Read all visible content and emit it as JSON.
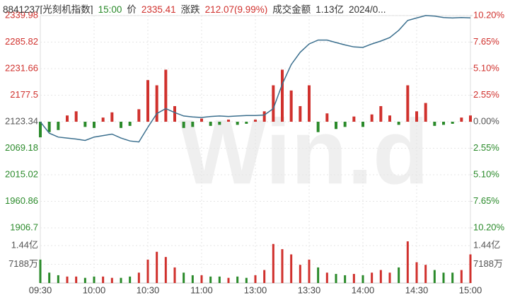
{
  "chart_data": {
    "type": "intraday",
    "header": {
      "items": [
        "8841237[光刻机指数]",
        "15:00",
        "价",
        "2335.41",
        "涨跌",
        "212.07(9.99%)",
        "成交金额",
        "1.13亿",
        "2024/0..."
      ],
      "colors": [
        "#333333",
        "#2a8a2a",
        "#333333",
        "#d0312d",
        "#333333",
        "#d0312d",
        "#333333",
        "#333333",
        "#333333"
      ]
    },
    "watermark": "Win.d",
    "categories": [
      "09:30",
      null,
      null,
      null,
      null,
      null,
      "10:00",
      null,
      null,
      null,
      null,
      null,
      "10:30",
      null,
      null,
      null,
      null,
      null,
      "11:00",
      null,
      null,
      null,
      null,
      null,
      "13:00",
      null,
      null,
      null,
      null,
      null,
      "13:30",
      null,
      null,
      null,
      null,
      null,
      "14:00",
      null,
      null,
      null,
      null,
      null,
      "14:30",
      null,
      null,
      null,
      null,
      null,
      "15:00"
    ],
    "ylim": [
      1906.7,
      2339.98
    ],
    "yticks": [
      2339.98,
      2285.82,
      2231.66,
      2177.5,
      2123.34,
      2069.18,
      2015.02,
      1960.86,
      1906.7
    ],
    "y2lim": [
      -10.2,
      10.2
    ],
    "y2ticks": [
      {
        "value": 10.2,
        "label": "10.20%"
      },
      {
        "value": 7.65,
        "label": "7.65%"
      },
      {
        "value": 5.1,
        "label": "5.10%"
      },
      {
        "value": 2.55,
        "label": "2.55%"
      },
      {
        "value": 0,
        "label": "0.00%"
      },
      {
        "value": -2.55,
        "label": "2.55%"
      },
      {
        "value": -5.1,
        "label": "5.10%"
      },
      {
        "value": -7.65,
        "label": "7.65%"
      },
      {
        "value": -10.2,
        "label": "10.20%"
      }
    ],
    "volume_ylim": [
      0,
      19000
    ],
    "volume_ticks": [
      {
        "value": 14400,
        "label": "1.44亿"
      },
      {
        "value": 7188,
        "label": "7188万"
      }
    ],
    "up_color": "#d0312d",
    "down_color": "#2a8a2a",
    "flat_color": "#555555",
    "series": [
      {
        "name": "价",
        "color": "#3b6f8e",
        "values": [
          2123,
          2100,
          2092,
          2090,
          2088,
          2085,
          2092,
          2095,
          2098,
          2090,
          2084,
          2082,
          2112,
          2140,
          2150,
          2142,
          2135,
          2133,
          2132,
          2134,
          2135,
          2134,
          2135,
          2136,
          2136,
          2137,
          2150,
          2200,
          2240,
          2265,
          2282,
          2290,
          2290,
          2285,
          2280,
          2276,
          2275,
          2282,
          2288,
          2295,
          2310,
          2330,
          2335,
          2340,
          2339,
          2336,
          2335,
          2336,
          2335.41
        ]
      },
      {
        "axis": "y2",
        "values": [
          -1.5,
          -1,
          -0.8,
          0.6,
          1.0,
          -0.5,
          -0.6,
          0.4,
          0.9,
          -0.6,
          -0.4,
          1.2,
          4.0,
          3.5,
          5.0,
          1.5,
          -0.6,
          -0.5,
          0.3,
          -0.4,
          -0.3,
          0.2,
          -0.3,
          -0.2,
          0.2,
          1.0,
          3.5,
          5.0,
          3.0,
          1.5,
          3.5,
          -1.0,
          0.8,
          -0.7,
          -0.5,
          0.5,
          -0.5,
          0.7,
          1.5,
          0.6,
          -0.3,
          3.5,
          1.0,
          1.8,
          -0.4,
          -0.3,
          -0.2,
          0.4,
          0.6
        ]
      },
      {
        "axis": "volume",
        "values": [
          9000,
          4000,
          3000,
          2500,
          2500,
          2000,
          2500,
          2500,
          2000,
          2000,
          2500,
          4000,
          9000,
          12000,
          10000,
          6000,
          4000,
          3000,
          3000,
          2500,
          2500,
          2000,
          2500,
          2000,
          3000,
          5000,
          15000,
          13000,
          11000,
          7000,
          9000,
          6000,
          4000,
          3500,
          3000,
          3500,
          3000,
          4000,
          5000,
          4000,
          6000,
          16000,
          8000,
          7000,
          5000,
          4000,
          4000,
          5000,
          11000
        ]
      }
    ]
  }
}
